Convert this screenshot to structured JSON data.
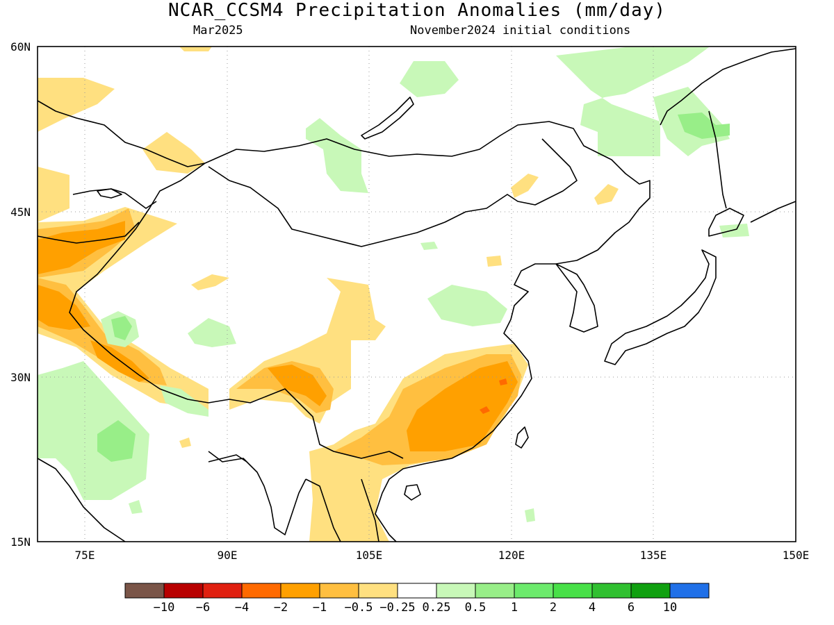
{
  "title": "NCAR_CCSM4 Precipitation Anomalies (mm/day)",
  "subtitle_left": "Mar2025",
  "subtitle_right": "November2024 initial conditions",
  "axes": {
    "lat_ticks": [
      "60N",
      "45N",
      "30N",
      "15N"
    ],
    "lon_ticks": [
      "75E",
      "90E",
      "105E",
      "120E",
      "135E",
      "150E"
    ],
    "lat_range": [
      15,
      60
    ],
    "lon_range": [
      70,
      150
    ]
  },
  "colorbar": {
    "colors": [
      "#7a5548",
      "#b80000",
      "#e02010",
      "#ff6a00",
      "#ffa000",
      "#ffbf40",
      "#ffe080",
      "#ffffff",
      "#c8f8b8",
      "#98ee88",
      "#6cea6c",
      "#48e048",
      "#30c030",
      "#10a010",
      "#2070e8"
    ],
    "labels": [
      "−10",
      "−6",
      "−4",
      "−2",
      "−1",
      "−0.5",
      "−0.25",
      "0.25",
      "0.5",
      "1",
      "2",
      "4",
      "6",
      "10"
    ]
  }
}
